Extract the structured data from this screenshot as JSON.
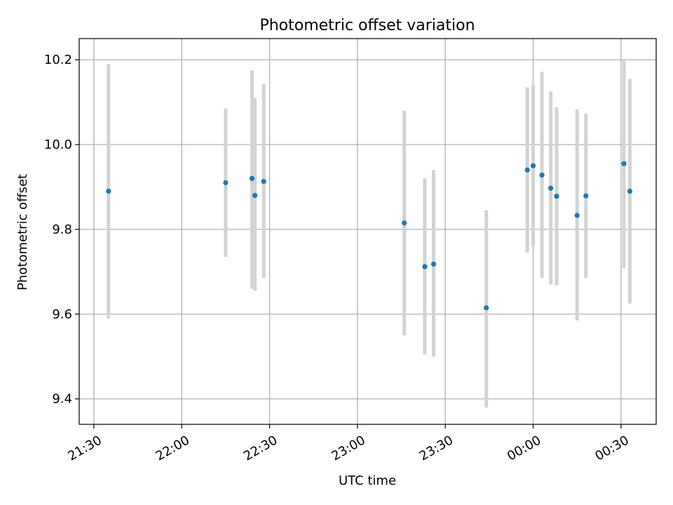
{
  "chart_data": {
    "type": "scatter",
    "title": "Photometric offset variation",
    "xlabel": "UTC time",
    "ylabel": "Photometric offset",
    "x_ticks": [
      "21:30",
      "22:00",
      "22:30",
      "23:00",
      "23:30",
      "00:00",
      "00:30"
    ],
    "y_ticks": [
      "9.4",
      "9.6",
      "9.8",
      "10.0",
      "10.2"
    ],
    "y_tick_values": [
      9.4,
      9.6,
      9.8,
      10.0,
      10.2
    ],
    "xlim": [
      "21:25",
      "00:42"
    ],
    "ylim": [
      9.34,
      10.25
    ],
    "grid": true,
    "errorbars": true,
    "colors": {
      "point": "#1f77b4",
      "errorbar": "#d3d3d3",
      "grid": "#b0b0b0"
    },
    "points": [
      {
        "t": "21:35",
        "y": 9.89,
        "lo": 9.59,
        "hi": 10.19
      },
      {
        "t": "22:15",
        "y": 9.91,
        "lo": 9.735,
        "hi": 10.085
      },
      {
        "t": "22:24",
        "y": 9.92,
        "lo": 9.66,
        "hi": 10.175
      },
      {
        "t": "22:25",
        "y": 9.88,
        "lo": 9.655,
        "hi": 10.11
      },
      {
        "t": "22:28",
        "y": 9.913,
        "lo": 9.685,
        "hi": 10.143
      },
      {
        "t": "23:16",
        "y": 9.815,
        "lo": 9.55,
        "hi": 10.08
      },
      {
        "t": "23:23",
        "y": 9.712,
        "lo": 9.505,
        "hi": 9.92
      },
      {
        "t": "23:26",
        "y": 9.718,
        "lo": 9.5,
        "hi": 9.94
      },
      {
        "t": "23:44",
        "y": 9.615,
        "lo": 9.38,
        "hi": 9.845
      },
      {
        "t": "23:58",
        "y": 9.94,
        "lo": 9.745,
        "hi": 10.135
      },
      {
        "t": "00:00",
        "y": 9.95,
        "lo": 9.76,
        "hi": 10.14
      },
      {
        "t": "00:03",
        "y": 9.928,
        "lo": 9.685,
        "hi": 10.172
      },
      {
        "t": "00:06",
        "y": 9.897,
        "lo": 9.67,
        "hi": 10.125
      },
      {
        "t": "00:08",
        "y": 9.878,
        "lo": 9.668,
        "hi": 10.088
      },
      {
        "t": "00:15",
        "y": 9.833,
        "lo": 9.585,
        "hi": 10.083
      },
      {
        "t": "00:18",
        "y": 9.879,
        "lo": 9.685,
        "hi": 10.073
      },
      {
        "t": "00:31",
        "y": 9.955,
        "lo": 9.708,
        "hi": 10.202
      },
      {
        "t": "00:33",
        "y": 9.89,
        "lo": 9.625,
        "hi": 10.155
      }
    ]
  }
}
